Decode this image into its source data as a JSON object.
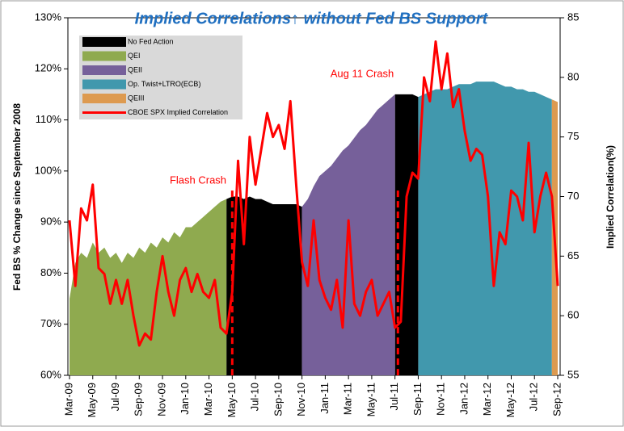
{
  "chart_data": {
    "type": "area-line",
    "title": "Implied Correlations↑ without Fed BS Support",
    "y_label": "Fed BS % Change since September 2008",
    "y2_label": "Implied Correlation(%)",
    "annotations": [
      "Flash Crash",
      "Aug 11 Crash"
    ],
    "legend": "upper left",
    "categories": [
      "Mar-09",
      null,
      null,
      null,
      "May-09",
      null,
      null,
      null,
      "Jul-09",
      null,
      null,
      null,
      "Sep-09",
      null,
      null,
      null,
      "Nov-09",
      null,
      null,
      null,
      "Jan-10",
      null,
      null,
      null,
      "Mar-10",
      null,
      null,
      null,
      "May-10",
      null,
      null,
      null,
      "Jul-10",
      null,
      null,
      null,
      "Sep-10",
      null,
      null,
      null,
      "Nov-10",
      null,
      null,
      null,
      "Jan-11",
      null,
      null,
      null,
      "Mar-11",
      null,
      null,
      null,
      "May-11",
      null,
      null,
      null,
      "Jul-11",
      null,
      null,
      null,
      "Sep-11",
      null,
      null,
      null,
      "Nov-11",
      null,
      null,
      null,
      "Jan-12",
      null,
      null,
      null,
      "Mar-12",
      null,
      null,
      null,
      "May-12",
      null,
      null,
      null,
      "Jul-12",
      null,
      null,
      null,
      "Sep-12"
    ],
    "ylim": [
      60,
      130
    ],
    "yticks": [
      {
        "value": 60,
        "label": "60%"
      },
      {
        "value": 70,
        "label": "70%"
      },
      {
        "value": 80,
        "label": "80%"
      },
      {
        "value": 90,
        "label": "90%"
      },
      {
        "value": 100,
        "label": "100%"
      },
      {
        "value": 110,
        "label": "110%"
      },
      {
        "value": 120,
        "label": "120%"
      },
      {
        "value": 130,
        "label": "130%"
      }
    ],
    "y2lim": [
      55,
      85
    ],
    "y2ticks": [
      55,
      60,
      65,
      70,
      75,
      80,
      85
    ],
    "series": [
      {
        "name": "No Fed Action",
        "kind": "area",
        "color": "#000000",
        "values": [
          null,
          null,
          null,
          null,
          null,
          null,
          null,
          null,
          null,
          null,
          null,
          null,
          null,
          null,
          null,
          null,
          null,
          null,
          null,
          null,
          null,
          null,
          null,
          null,
          null,
          null,
          null,
          94.5,
          95,
          95,
          94.5,
          95,
          94.5,
          94.5,
          94,
          93.5,
          93.5,
          93.5,
          93.5,
          93.5,
          93,
          null,
          null,
          null,
          null,
          null,
          null,
          null,
          null,
          null,
          null,
          null,
          null,
          null,
          null,
          null,
          115,
          115,
          115,
          115,
          114.5,
          null,
          null,
          null,
          null,
          null,
          null,
          null,
          null,
          null,
          null,
          null,
          null,
          null,
          null,
          null,
          null,
          null,
          null,
          null,
          null,
          null,
          null,
          null,
          null
        ]
      },
      {
        "name": "QEI",
        "kind": "area",
        "color": "#8faa4f",
        "values": [
          75,
          82,
          84,
          83,
          86,
          84,
          85,
          83,
          84,
          82,
          84,
          83,
          85,
          84,
          86,
          85,
          87,
          86,
          88,
          87,
          89,
          89,
          90,
          91,
          92,
          93,
          94,
          94.5,
          null,
          null,
          null,
          null,
          null,
          null,
          null,
          null,
          null,
          null,
          null,
          null,
          null,
          null,
          null,
          null,
          null,
          null,
          null,
          null,
          null,
          null,
          null,
          null,
          null,
          null,
          null,
          null,
          null,
          null,
          null,
          null,
          null,
          null,
          null,
          null,
          null,
          null,
          null,
          null,
          null,
          null,
          null,
          null,
          null,
          null,
          null,
          null,
          null,
          null,
          null,
          null,
          null,
          null,
          null,
          null,
          null
        ]
      },
      {
        "name": "QEII",
        "kind": "area",
        "color": "#76609a",
        "values": [
          null,
          null,
          null,
          null,
          null,
          null,
          null,
          null,
          null,
          null,
          null,
          null,
          null,
          null,
          null,
          null,
          null,
          null,
          null,
          null,
          null,
          null,
          null,
          null,
          null,
          null,
          null,
          null,
          null,
          null,
          null,
          null,
          null,
          null,
          null,
          null,
          null,
          null,
          null,
          null,
          93,
          94.5,
          97,
          99,
          100,
          101,
          102.5,
          104,
          105,
          106.5,
          108,
          109,
          110.5,
          112,
          113,
          114,
          115,
          null,
          null,
          null,
          null,
          null,
          null,
          null,
          null,
          null,
          null,
          null,
          null,
          null,
          null,
          null,
          null,
          null,
          null,
          null,
          null,
          null,
          null,
          null,
          null,
          null,
          null,
          null,
          null
        ]
      },
      {
        "name": "Op. Twist+LTRO(ECB)",
        "kind": "area",
        "color": "#4198ad",
        "values": [
          null,
          null,
          null,
          null,
          null,
          null,
          null,
          null,
          null,
          null,
          null,
          null,
          null,
          null,
          null,
          null,
          null,
          null,
          null,
          null,
          null,
          null,
          null,
          null,
          null,
          null,
          null,
          null,
          null,
          null,
          null,
          null,
          null,
          null,
          null,
          null,
          null,
          null,
          null,
          null,
          null,
          null,
          null,
          null,
          null,
          null,
          null,
          null,
          null,
          null,
          null,
          null,
          null,
          null,
          null,
          null,
          null,
          null,
          null,
          null,
          114.5,
          115,
          115.5,
          116,
          116,
          116,
          116.5,
          117,
          117,
          117,
          117.5,
          117.5,
          117.5,
          117.5,
          117,
          116.5,
          116.5,
          116,
          116,
          115.5,
          115.5,
          115,
          114.5,
          114,
          null
        ]
      },
      {
        "name": "QEIII",
        "kind": "area",
        "color": "#dd9a50",
        "values": [
          null,
          null,
          null,
          null,
          null,
          null,
          null,
          null,
          null,
          null,
          null,
          null,
          null,
          null,
          null,
          null,
          null,
          null,
          null,
          null,
          null,
          null,
          null,
          null,
          null,
          null,
          null,
          null,
          null,
          null,
          null,
          null,
          null,
          null,
          null,
          null,
          null,
          null,
          null,
          null,
          null,
          null,
          null,
          null,
          null,
          null,
          null,
          null,
          null,
          null,
          null,
          null,
          null,
          null,
          null,
          null,
          null,
          null,
          null,
          null,
          null,
          null,
          null,
          null,
          null,
          null,
          null,
          null,
          null,
          null,
          null,
          null,
          null,
          null,
          null,
          null,
          null,
          null,
          null,
          null,
          null,
          null,
          null,
          114,
          113.5
        ]
      },
      {
        "name": "CBOE SPX Implied Correlation",
        "kind": "line",
        "axis": "y2",
        "color": "#ff0000",
        "values": [
          68,
          62.5,
          69,
          68,
          71,
          64,
          63.5,
          61,
          63,
          61,
          63,
          60,
          57.5,
          58.5,
          58,
          62,
          65,
          62,
          60,
          63,
          64,
          62,
          63.5,
          62,
          61.5,
          63,
          59,
          58.5,
          62,
          73,
          66,
          75,
          71,
          74,
          77,
          75,
          76,
          74,
          78,
          71,
          64.5,
          62.5,
          68,
          63,
          61.5,
          60.5,
          63,
          59,
          68,
          61,
          60,
          62,
          63,
          60,
          61,
          62,
          59,
          59.5,
          70,
          72,
          71.5,
          80,
          78,
          83,
          79,
          82,
          77.5,
          79,
          75.5,
          73,
          74,
          73.5,
          70,
          62.5,
          67,
          66,
          70.5,
          70,
          68,
          74.5,
          67,
          70,
          72,
          70,
          62.5
        ]
      }
    ]
  }
}
